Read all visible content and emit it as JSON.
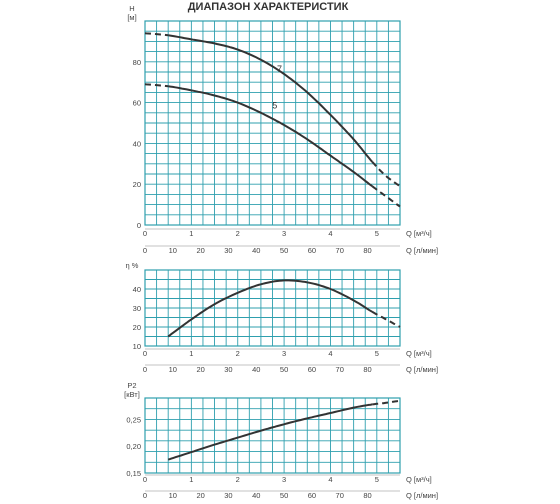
{
  "title": "ДИАПАЗОН ХАРАКТЕРИСТИК",
  "colors": {
    "grid": "#2e9fae",
    "curve": "#333333",
    "text": "#444444"
  },
  "chart_data": [
    {
      "type": "line",
      "id": "head",
      "ylabel": "H",
      "yunit": "[м]",
      "ylim": [
        0,
        100
      ],
      "yticks": [
        0,
        20,
        40,
        60,
        80
      ],
      "yticks_text": [
        "0",
        "20",
        "40",
        "60",
        "80"
      ],
      "grid": true,
      "x1": {
        "label": "Q [м³/ч]",
        "lim": [
          0,
          5.5
        ],
        "ticks": [
          0,
          1,
          2,
          3,
          4,
          5
        ]
      },
      "x2": {
        "label": "Q [л/мин]",
        "lim": [
          0,
          91.67
        ],
        "ticks": [
          0,
          10,
          20,
          30,
          40,
          50,
          60,
          70,
          80
        ]
      },
      "series": [
        {
          "name": "7",
          "x": [
            0,
            0.5,
            1.0,
            1.5,
            2.0,
            2.5,
            3.0,
            3.5,
            4.0,
            4.5,
            4.9,
            5.2,
            5.5
          ],
          "y": [
            94,
            93,
            91,
            89,
            86,
            81,
            74,
            65,
            54,
            42,
            31,
            24,
            19
          ],
          "solid_range": [
            0.5,
            4.9
          ]
        },
        {
          "name": "5",
          "x": [
            0,
            0.5,
            1.0,
            1.5,
            2.0,
            2.5,
            3.0,
            3.5,
            4.0,
            4.5,
            4.9,
            5.2,
            5.5
          ],
          "y": [
            69,
            68,
            66,
            63.5,
            60,
            55,
            49,
            42,
            34,
            26,
            19,
            14,
            9
          ],
          "solid_range": [
            0.5,
            4.9
          ]
        }
      ],
      "labels": [
        {
          "text": "7",
          "x": 2.9,
          "y": 75
        },
        {
          "text": "5",
          "x": 2.8,
          "y": 57
        }
      ]
    },
    {
      "type": "line",
      "id": "efficiency",
      "ylabel": "η %",
      "ylim": [
        10,
        50
      ],
      "yticks": [
        10,
        20,
        30,
        40
      ],
      "yticks_text": [
        "10",
        "20",
        "30",
        "40"
      ],
      "grid": true,
      "x1": {
        "label": "Q [м³/ч]",
        "lim": [
          0,
          5.5
        ],
        "ticks": [
          0,
          1,
          2,
          3,
          4,
          5
        ]
      },
      "x2": {
        "label": "Q [л/мин]",
        "lim": [
          0,
          91.67
        ],
        "ticks": [
          0,
          10,
          20,
          30,
          40,
          50,
          60,
          70,
          80
        ]
      },
      "series": [
        {
          "name": "",
          "x": [
            0.5,
            1.0,
            1.5,
            2.0,
            2.5,
            3.0,
            3.5,
            4.0,
            4.5,
            4.9,
            5.2,
            5.5
          ],
          "y": [
            15,
            24,
            32,
            38,
            42.5,
            44.5,
            43.5,
            40,
            34,
            28,
            24,
            20
          ],
          "solid_range": [
            0.5,
            4.9
          ]
        }
      ]
    },
    {
      "type": "line",
      "id": "power",
      "ylabel": "P2",
      "yunit": "[кВт]",
      "ylim": [
        0.15,
        0.29
      ],
      "yticks": [
        0.15,
        0.2,
        0.25
      ],
      "yticks_text": [
        "0,15",
        "0,20",
        "0,25"
      ],
      "grid": true,
      "x1": {
        "label": "Q [м³/ч]",
        "lim": [
          0,
          5.5
        ],
        "ticks": [
          0,
          1,
          2,
          3,
          4,
          5
        ]
      },
      "x2": {
        "label": "Q [л/мин]",
        "lim": [
          0,
          91.67
        ],
        "ticks": [
          0,
          10,
          20,
          30,
          40,
          50,
          60,
          70,
          80
        ]
      },
      "series": [
        {
          "name": "",
          "x": [
            0.5,
            1.0,
            1.5,
            2.0,
            2.5,
            3.0,
            3.5,
            4.0,
            4.5,
            4.9,
            5.2,
            5.5
          ],
          "y": [
            0.175,
            0.189,
            0.203,
            0.216,
            0.229,
            0.241,
            0.252,
            0.262,
            0.272,
            0.278,
            0.281,
            0.285
          ],
          "solid_range": [
            0.5,
            4.9
          ]
        }
      ]
    }
  ]
}
